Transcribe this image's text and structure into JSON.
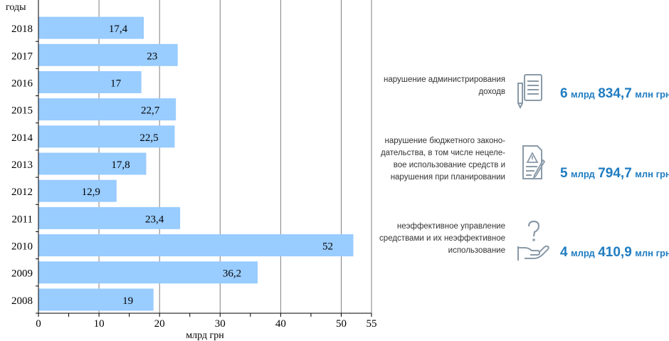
{
  "chart_data": {
    "type": "bar",
    "orientation": "horizontal",
    "categories": [
      "2008",
      "2009",
      "2010",
      "2011",
      "2012",
      "2013",
      "2014",
      "2015",
      "2016",
      "2017",
      "2018"
    ],
    "values": [
      19,
      36.2,
      52,
      23.4,
      12.9,
      17.8,
      22.5,
      22.7,
      17,
      23,
      17.4
    ],
    "data_labels": [
      "19",
      "36,2",
      "52",
      "23,4",
      "12,9",
      "17,8",
      "22,5",
      "22,7",
      "17",
      "23",
      "17,4"
    ],
    "xlabel": "млрд грн",
    "ylabel": "годы",
    "xlim": [
      0,
      55
    ],
    "x_ticks": [
      0,
      10,
      20,
      30,
      40,
      50,
      55
    ],
    "grid": "vertical",
    "bar_color": "#99ccff"
  },
  "panel": {
    "items": [
      {
        "text": "нарушение администрирования\nдоходв",
        "amount_num": "6",
        "amount_unit": "млрд",
        "amount_num2": "834,7",
        "amount_unit2": "млн грн",
        "icon": "document-icon"
      },
      {
        "text": "нарушение бюджетного законо-\nдательства, в том числе нецеле-\nвое использование средств и\nнарушения при планировании",
        "amount_num": "5",
        "amount_unit": "млрд",
        "amount_num2": "794,7",
        "amount_unit2": "млн грн",
        "icon": "warning-document-icon"
      },
      {
        "text": "неэффективное управление\nсредствами и их неэффективное\nиспользование",
        "amount_num": "4",
        "amount_unit": "млрд",
        "amount_num2": "410,9",
        "amount_unit2": "млн грн",
        "icon": "question-hand-icon"
      }
    ],
    "accent_color": "#1f7cc1"
  }
}
